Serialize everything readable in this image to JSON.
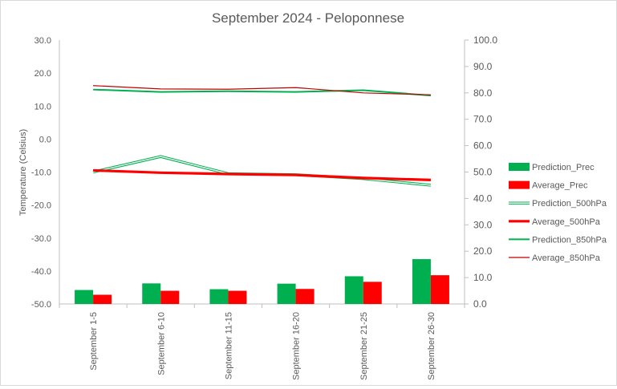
{
  "chart_data": {
    "type": "bar+line",
    "title": "September 2024 - Peloponnese",
    "ylabel": "Temperature (Celsius)",
    "y2label": "",
    "ylim": [
      -50,
      30
    ],
    "ystep": 10,
    "y2lim": [
      0,
      100
    ],
    "y2step": 10,
    "y_tick_labels": [
      "30.0",
      "20.0",
      "10.0",
      "0.0",
      "-10.0",
      "-20.0",
      "-30.0",
      "-40.0",
      "-50.0"
    ],
    "y2_tick_labels": [
      "100.0",
      "90.0",
      "80.0",
      "70.0",
      "60.0",
      "50.0",
      "40.0",
      "30.0",
      "20.0",
      "10.0",
      "0.0"
    ],
    "categories": [
      "September 1-5",
      "September 6-10",
      "September 11-15",
      "September 16-20",
      "September 21-25",
      "September 26-30"
    ],
    "legend_position": "right",
    "grid": false,
    "bar_series": [
      {
        "name": "Prediction_Prec",
        "axis": "secondary",
        "color": "#00b050",
        "values": [
          5.3,
          7.8,
          5.6,
          7.7,
          10.5,
          17.0
        ]
      },
      {
        "name": "Average_Prec",
        "axis": "secondary",
        "color": "#ff0000",
        "values": [
          3.5,
          5.0,
          5.0,
          5.7,
          8.4,
          10.9
        ]
      }
    ],
    "line_series": [
      {
        "name": "Prediction_500hPa",
        "axis": "primary",
        "color": "#00b050",
        "style": "double",
        "values": [
          -10.0,
          -5.3,
          -10.5,
          -10.8,
          -12.0,
          -14.0
        ]
      },
      {
        "name": "Average_500hPa",
        "axis": "primary",
        "color": "#ff0000",
        "style": "thick",
        "values": [
          -9.5,
          -10.2,
          -10.6,
          -10.9,
          -11.8,
          -12.4
        ]
      },
      {
        "name": "Prediction_850hPa",
        "axis": "primary",
        "color": "#00b050",
        "style": "thin",
        "values": [
          15.0,
          14.3,
          14.5,
          14.3,
          14.8,
          13.2
        ]
      },
      {
        "name": "Average_850hPa",
        "axis": "primary",
        "color": "#c00000",
        "style": "hair",
        "values": [
          16.2,
          15.2,
          15.1,
          15.6,
          14.0,
          13.4
        ]
      }
    ],
    "legend_order": [
      "Prediction_Prec",
      "Average_Prec",
      "Prediction_500hPa",
      "Average_500hPa",
      "Prediction_850hPa",
      "Average_850hPa"
    ]
  }
}
